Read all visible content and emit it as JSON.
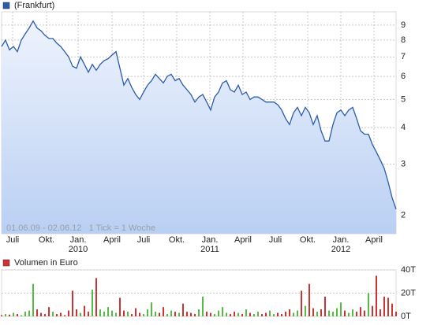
{
  "chart_data": [
    {
      "type": "line",
      "series": [
        {
          "name": "(Frankfurt)",
          "color": "#2a5caa",
          "values": [
            7.6,
            8.0,
            7.4,
            7.6,
            7.3,
            8.0,
            8.4,
            8.8,
            9.3,
            8.8,
            8.6,
            8.3,
            8.1,
            8.1,
            7.8,
            7.6,
            7.3,
            7.0,
            6.5,
            6.4,
            7.0,
            6.6,
            6.2,
            6.6,
            6.3,
            6.6,
            6.8,
            6.9,
            7.1,
            7.3,
            6.4,
            5.6,
            5.9,
            5.5,
            5.2,
            5.0,
            5.3,
            5.6,
            5.8,
            6.1,
            5.9,
            5.7,
            6.0,
            6.1,
            5.8,
            5.9,
            5.6,
            5.4,
            5.2,
            4.9,
            5.1,
            5.2,
            4.9,
            4.6,
            5.1,
            5.3,
            5.7,
            5.8,
            5.4,
            5.3,
            5.6,
            5.2,
            5.3,
            5.0,
            5.1,
            5.1,
            5.0,
            4.9,
            4.9,
            4.9,
            4.8,
            4.6,
            4.3,
            4.1,
            4.5,
            4.7,
            4.4,
            4.7,
            4.5,
            4.1,
            4.4,
            3.9,
            3.6,
            3.6,
            4.1,
            4.5,
            4.6,
            4.4,
            4.6,
            4.7,
            4.3,
            3.9,
            3.8,
            3.8,
            3.5,
            3.3,
            3.1,
            2.9,
            2.6,
            2.3,
            2.1
          ]
        }
      ],
      "xlim": [
        0,
        100
      ],
      "xticks": [
        {
          "value": 2.8,
          "label": "Juli"
        },
        {
          "value": 11.4,
          "label": "Okt."
        },
        {
          "value": 19.4,
          "label": "Jan."
        },
        {
          "value": 28,
          "label": "April"
        },
        {
          "value": 36,
          "label": "Juli"
        },
        {
          "value": 44.4,
          "label": "Okt."
        },
        {
          "value": 52.8,
          "label": "Jan."
        },
        {
          "value": 61.2,
          "label": "April"
        },
        {
          "value": 69.4,
          "label": "Juli"
        },
        {
          "value": 77.6,
          "label": "Okt."
        },
        {
          "value": 86,
          "label": "Jan."
        },
        {
          "value": 94.4,
          "label": "April"
        }
      ],
      "year_labels": [
        {
          "value": 19.4,
          "label": "2010"
        },
        {
          "value": 52.8,
          "label": "2011"
        },
        {
          "value": 86,
          "label": "2012"
        }
      ],
      "ylim": [
        1.73,
        10
      ],
      "yticks": [
        2,
        3,
        4,
        5,
        6,
        7,
        8,
        9
      ],
      "log_scale": true,
      "grid": true,
      "note": "01.06.09 - 02.06.12   1 Tick = 1 Woche"
    },
    {
      "type": "bar",
      "series": [
        {
          "name": "Volumen in Euro",
          "color": "#cc3333",
          "values": [
            1000,
            2000,
            1500,
            3000,
            2000,
            1000,
            4000,
            5000,
            28000,
            6000,
            3000,
            2000,
            8000,
            4000,
            2000,
            3000,
            1000,
            5000,
            22000,
            6000,
            3000,
            9000,
            4000,
            23000,
            33000,
            6000,
            4000,
            8000,
            5000,
            3000,
            16000,
            5000,
            4000,
            2000,
            7000,
            3000,
            2000,
            6000,
            12000,
            4000,
            3000,
            8000,
            2000,
            5000,
            4000,
            3000,
            11000,
            4000,
            3000,
            2000,
            6000,
            17000,
            4000,
            3000,
            2000,
            5000,
            8000,
            3000,
            2000,
            4000,
            3000,
            2000,
            6000,
            3000,
            2000,
            4000,
            2000,
            3000,
            5000,
            2000,
            3000,
            2000,
            4000,
            6000,
            3000,
            5000,
            22000,
            9000,
            28000,
            7000,
            4000,
            6000,
            17000,
            5000,
            4000,
            7000,
            12000,
            5000,
            3000,
            6000,
            4000,
            8000,
            5000,
            20000,
            9000,
            35000,
            6000,
            17000,
            16000,
            11000,
            4000
          ]
        }
      ],
      "up_color": "#55bb44",
      "down_color": "#cc3333",
      "xlim": [
        0,
        100
      ],
      "ylim": [
        0,
        40000
      ],
      "yticks": [
        {
          "value": 0,
          "label": "0T"
        },
        {
          "value": 20000,
          "label": "20T"
        },
        {
          "value": 40000,
          "label": "40T"
        }
      ],
      "grid": true
    }
  ]
}
